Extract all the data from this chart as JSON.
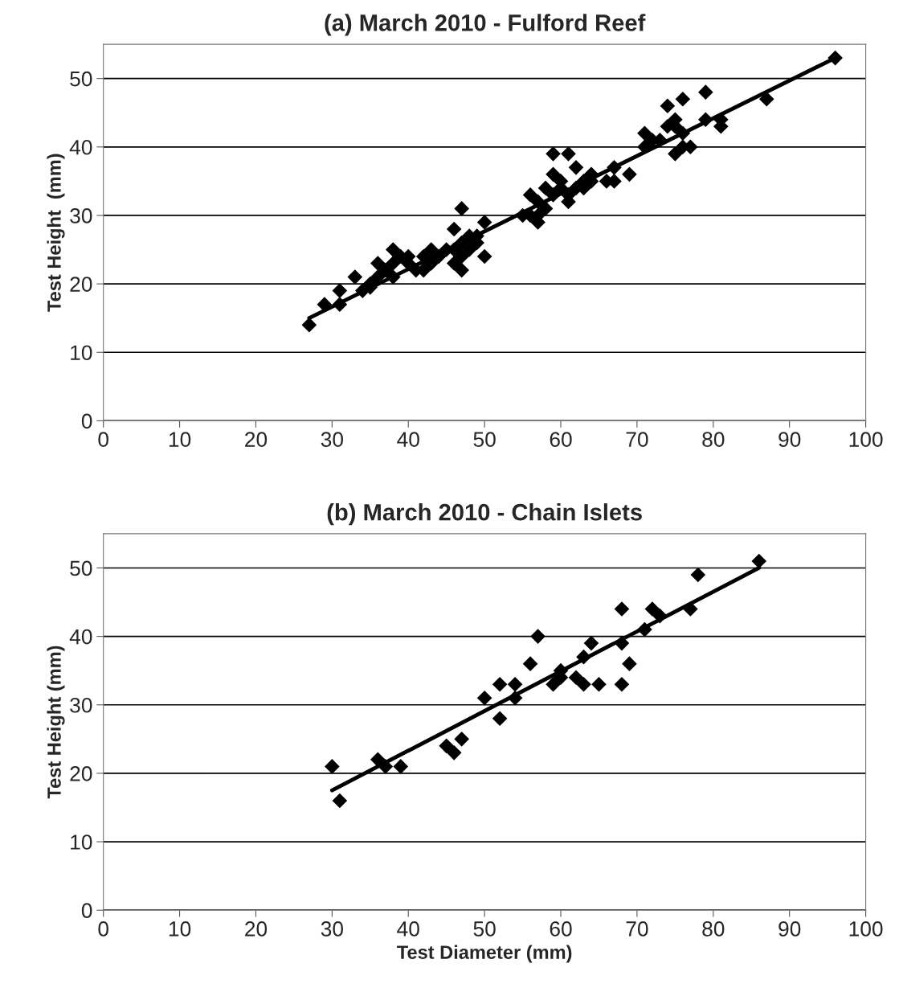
{
  "chart_data": [
    {
      "type": "scatter",
      "title": "(a) March 2010 - Fulford Reef",
      "ylabel": "Test Height  (mm)",
      "xlim": [
        0,
        100
      ],
      "xticks": [
        0,
        10,
        20,
        30,
        40,
        50,
        60,
        70,
        80,
        90,
        100
      ],
      "ylim": [
        0,
        55
      ],
      "yticks": [
        0,
        10,
        20,
        30,
        40,
        50
      ],
      "grid": "y",
      "legend": false,
      "marker": "diamond",
      "series": [
        {
          "color": "#000000",
          "x": [
            27,
            29,
            31,
            31,
            33,
            34,
            35,
            35,
            36,
            36,
            37,
            38,
            38,
            38,
            39,
            40,
            40,
            41,
            42,
            42,
            43,
            43,
            44,
            45,
            46,
            46,
            46,
            47,
            47,
            47,
            47,
            48,
            48,
            49,
            49,
            50,
            50,
            55,
            56,
            56,
            57,
            57,
            57,
            58,
            58,
            59,
            59,
            59,
            60,
            60,
            61,
            61,
            61,
            62,
            62,
            63,
            63,
            64,
            64,
            66,
            67,
            67,
            69,
            71,
            71,
            72,
            73,
            74,
            74,
            75,
            75,
            75,
            76,
            76,
            76,
            77,
            79,
            79,
            81,
            81,
            87,
            96
          ],
          "values": [
            14,
            17,
            17,
            19,
            21,
            19,
            19.5,
            20,
            21,
            23,
            22,
            21,
            25,
            23,
            24,
            23,
            24,
            22,
            22,
            24,
            23,
            25,
            24,
            25,
            25,
            28,
            23,
            31,
            22,
            24,
            26,
            25,
            27,
            26,
            27,
            24,
            29,
            30,
            33,
            30,
            29,
            32,
            30,
            31,
            34,
            36,
            39,
            33,
            35,
            34,
            39,
            32,
            33,
            37,
            34,
            35,
            34,
            36,
            35,
            35,
            37,
            35,
            36,
            40,
            42,
            41,
            41,
            46,
            43,
            44,
            39,
            43,
            47,
            42,
            40,
            40,
            48,
            44,
            44,
            43,
            47,
            53
          ]
        },
        {
          "type": "line",
          "color": "#000000",
          "marker": "none",
          "line_style": "solid",
          "x": [
            27,
            96
          ],
          "values": [
            15,
            53
          ]
        }
      ]
    },
    {
      "type": "scatter",
      "title": "(b) March 2010 - Chain Islets",
      "xlabel": "Test Diameter (mm)",
      "ylabel": "Test Height (mm)",
      "xlim": [
        0,
        100
      ],
      "xticks": [
        0,
        10,
        20,
        30,
        40,
        50,
        60,
        70,
        80,
        90,
        100
      ],
      "ylim": [
        0,
        55
      ],
      "yticks": [
        0,
        10,
        20,
        30,
        40,
        50
      ],
      "grid": "y",
      "legend": false,
      "marker": "diamond",
      "series": [
        {
          "color": "#000000",
          "x": [
            30,
            31,
            36,
            37,
            39,
            45,
            46,
            47,
            50,
            52,
            52,
            54,
            54,
            56,
            57,
            59,
            60,
            60,
            62,
            63,
            63,
            64,
            65,
            68,
            68,
            68,
            69,
            71,
            72,
            73,
            77,
            78,
            86
          ],
          "values": [
            21,
            16,
            22,
            21,
            21,
            24,
            23,
            25,
            31,
            33,
            28,
            33,
            31,
            36,
            40,
            33,
            34,
            35,
            34,
            37,
            33,
            39,
            33,
            44,
            39,
            33,
            36,
            41,
            44,
            43,
            44,
            49,
            51
          ]
        },
        {
          "type": "line",
          "color": "#000000",
          "marker": "none",
          "line_style": "solid",
          "x": [
            30,
            86
          ],
          "values": [
            17.5,
            50
          ]
        }
      ]
    }
  ]
}
